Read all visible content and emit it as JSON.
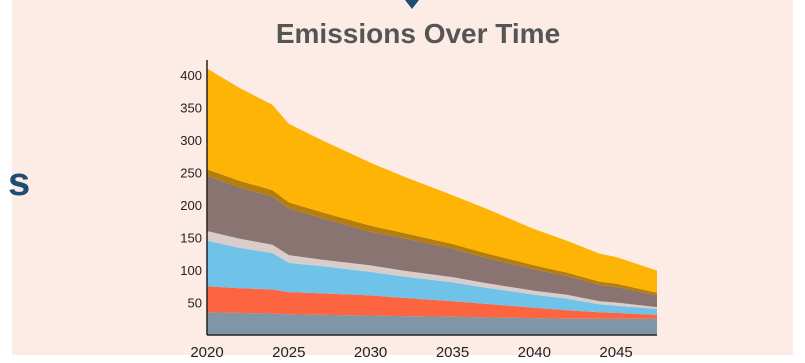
{
  "chart_data": {
    "type": "area",
    "stacked": true,
    "title": "Emissions Over Time",
    "xlabel": "",
    "ylabel": "",
    "xlim": [
      2020,
      2047.5
    ],
    "ylim": [
      0,
      420
    ],
    "grid": false,
    "x_ticks": [
      2020,
      2025,
      2030,
      2035,
      2040,
      2045
    ],
    "y_ticks": [
      50,
      100,
      150,
      200,
      250,
      300,
      350,
      400
    ],
    "x": [
      2020,
      2022,
      2024,
      2025,
      2027,
      2030,
      2032,
      2035,
      2037,
      2040,
      2042,
      2044,
      2045,
      2047.5
    ],
    "series": [
      {
        "color": "#7f96a6",
        "values": [
          35,
          34,
          33,
          32,
          31,
          30,
          29,
          28,
          27,
          26,
          25,
          25,
          25,
          25
        ]
      },
      {
        "color": "#fd6440",
        "values": [
          40,
          38,
          37,
          34,
          33,
          31,
          28,
          24,
          21,
          16,
          13,
          10,
          9,
          6
        ]
      },
      {
        "color": "#6fc3e8",
        "values": [
          70,
          62,
          56,
          45,
          42,
          36,
          33,
          29,
          25,
          20,
          18,
          12,
          11,
          9
        ]
      },
      {
        "color": "#d9cdcc",
        "values": [
          15,
          14,
          13,
          12,
          10,
          10,
          9,
          8,
          7,
          6,
          6,
          5,
          5,
          3
        ]
      },
      {
        "color": "#8a7472",
        "values": [
          85,
          79,
          74,
          72,
          64,
          52,
          50,
          44,
          39,
          33,
          29,
          25,
          24,
          18
        ]
      },
      {
        "color": "#b57d0a",
        "values": [
          10,
          10,
          10,
          9,
          9,
          9,
          8,
          7,
          7,
          6,
          5,
          5,
          5,
          4
        ]
      },
      {
        "color": "#fdb405",
        "values": [
          155,
          143,
          131,
          121,
          111,
          97,
          87,
          75,
          69,
          56,
          49,
          43,
          41,
          34
        ]
      }
    ]
  },
  "decor": {
    "edge_glyph": "s"
  }
}
